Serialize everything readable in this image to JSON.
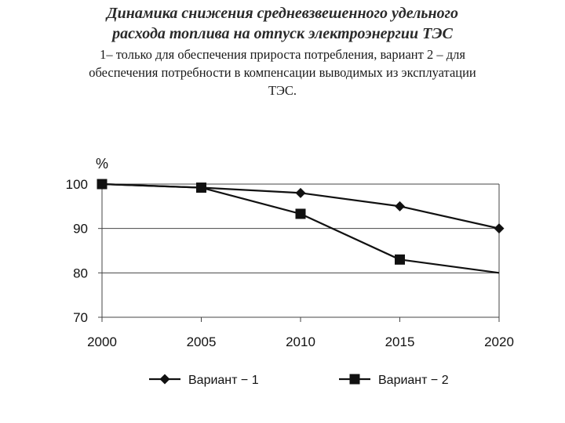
{
  "title": {
    "line1": "Динамика снижения средневзвешенного удельного",
    "line2": "расхода топлива на отпуск электроэнергии ТЭС"
  },
  "subtitle": {
    "line1": "1– только для обеспечения прироста потребления, вариант 2 – для",
    "line2": "обеспечения потребности в компенсации  выводимых из эксплуатации",
    "line3": "ТЭС."
  },
  "chart_data": {
    "type": "line",
    "x": [
      2000,
      2005,
      2010,
      2015,
      2020
    ],
    "xticks": [
      "2000",
      "2005",
      "2010",
      "2015",
      "2020"
    ],
    "yticks": [
      "70",
      "80",
      "90",
      "100"
    ],
    "ylim": [
      70,
      100
    ],
    "ylabel": "%",
    "xlabel": "",
    "grid": "horizontal",
    "legend_position": "bottom",
    "series": [
      {
        "name": "Вариант − 1",
        "marker": "diamond",
        "values": [
          100,
          99.2,
          98,
          95,
          90
        ]
      },
      {
        "name": "Вариант − 2",
        "marker": "square",
        "values": [
          100,
          99.2,
          93.3,
          83,
          80
        ],
        "marker_shown": [
          true,
          true,
          true,
          true,
          false
        ]
      }
    ]
  }
}
